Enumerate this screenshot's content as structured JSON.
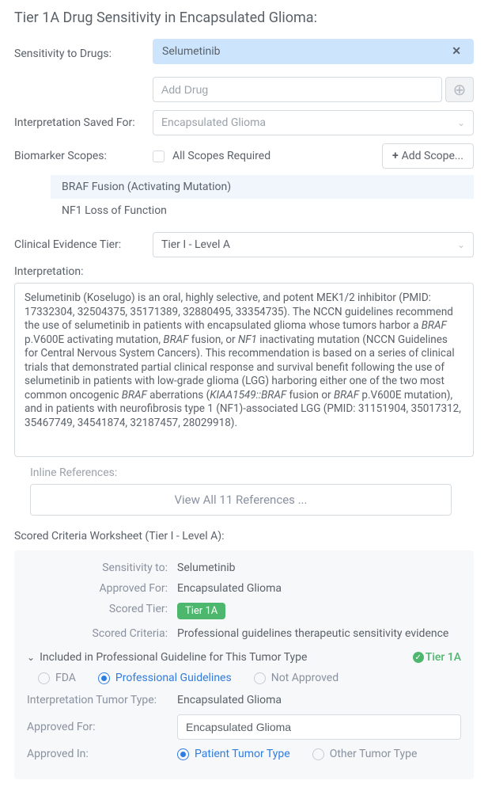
{
  "title": "Tier 1A Drug Sensitivity in Encapsulated Glioma:",
  "sensitivity": {
    "label": "Sensitivity to Drugs:",
    "selected_drug": "Selumetinib",
    "add_placeholder": "Add Drug"
  },
  "interpretation_saved_for": {
    "label": "Interpretation Saved For:",
    "value": "Encapsulated Glioma"
  },
  "biomarker_scopes": {
    "label": "Biomarker Scopes:",
    "all_required_label": "All Scopes Required",
    "add_scope_label": "Add Scope...",
    "items": [
      "BRAF Fusion (Activating Mutation)",
      "NF1 Loss of Function"
    ]
  },
  "clinical_tier": {
    "label": "Clinical Evidence Tier:",
    "value": "Tier I - Level A"
  },
  "interpretation": {
    "label": "Interpretation:",
    "text_parts": [
      {
        "t": "Selumetinib (Koselugo) is an oral, highly selective, and potent MEK1/2 inhibitor (PMID: 17332304, 32504375, 35171389, 32880495, 33354735). The NCCN guidelines recommend the use of selumetinib in patients with encapsulated glioma whose tumors harbor a "
      },
      {
        "t": "BRAF",
        "i": true
      },
      {
        "t": " p.V600E activating mutation, "
      },
      {
        "t": "BRAF",
        "i": true
      },
      {
        "t": " fusion, or "
      },
      {
        "t": "NF1",
        "i": true
      },
      {
        "t": " inactivating mutation (NCCN Guidelines for Central Nervous System Cancers). This recommendation is based on a series of clinical trials that demonstrated partial clinical response and survival benefit following the use of selumetinib in patients with low-grade glioma (LGG) harboring either one of the two most common oncogenic "
      },
      {
        "t": "BRAF",
        "i": true
      },
      {
        "t": " aberrations ("
      },
      {
        "t": "KIAA1549::BRAF",
        "i": true
      },
      {
        "t": " fusion or "
      },
      {
        "t": "BRAF",
        "i": true
      },
      {
        "t": " p.V600E mutation), and in patients with neurofibrosis type 1 (NF1)-associated LGG (PMID: 31151904, 35017312, 35467749, 34541874, 32187457, 28029918)."
      }
    ]
  },
  "inline_refs": {
    "label": "Inline References:",
    "button": "View All 11 References ..."
  },
  "worksheet": {
    "title": "Scored Criteria Worksheet (Tier I - Level A):",
    "rows": {
      "sensitivity_to": {
        "label": "Sensitivity to:",
        "value": "Selumetinib"
      },
      "approved_for": {
        "label": "Approved For:",
        "value": "Encapsulated Glioma"
      },
      "scored_tier": {
        "label": "Scored Tier:",
        "value": "Tier 1A"
      },
      "scored_criteria": {
        "label": "Scored Criteria:",
        "value": "Professional guidelines therapeutic sensitivity evidence"
      }
    },
    "guideline": {
      "header": "Included in Professional Guideline for This Tumor Type",
      "tier_label": "Tier 1A",
      "source_options": {
        "fda": "FDA",
        "prof": "Professional Guidelines",
        "not_approved": "Not Approved"
      },
      "interpretation_tumor_type": {
        "label": "Interpretation Tumor Type:",
        "value": "Encapsulated Glioma"
      },
      "approved_for": {
        "label": "Approved For:",
        "value": "Encapsulated Glioma"
      },
      "approved_in": {
        "label": "Approved In:",
        "patient": "Patient Tumor Type",
        "other": "Other Tumor Type"
      }
    }
  }
}
